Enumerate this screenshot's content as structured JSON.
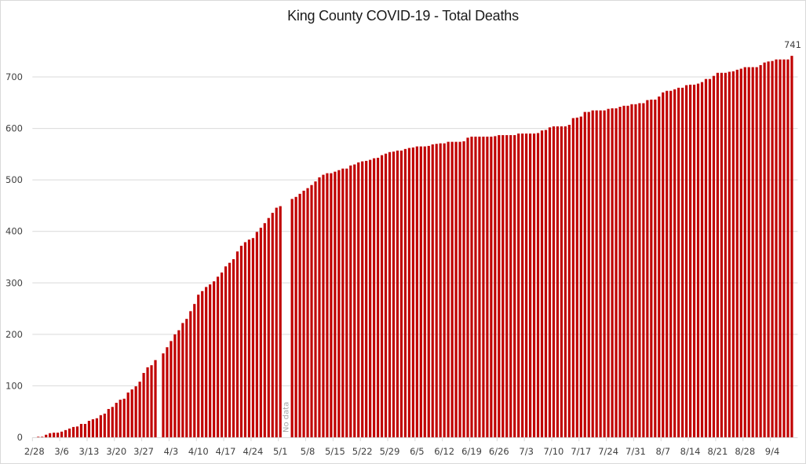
{
  "chart_data": {
    "type": "bar",
    "title": "King County COVID-19 - Total Deaths",
    "xlabel": "",
    "ylabel": "",
    "ylim": [
      0,
      700
    ],
    "yticks": [
      0,
      100,
      200,
      300,
      400,
      500,
      600,
      700
    ],
    "grid": true,
    "legend": "none",
    "bar_color": "#c00000",
    "x_tick_labels": [
      "2/28",
      "3/6",
      "3/13",
      "3/20",
      "3/27",
      "4/3",
      "4/10",
      "4/17",
      "4/24",
      "5/1",
      "5/8",
      "5/15",
      "5/22",
      "5/29",
      "6/5",
      "6/12",
      "6/19",
      "6/26",
      "7/3",
      "7/10",
      "7/17",
      "7/24",
      "7/31",
      "8/7",
      "8/14",
      "8/21",
      "8/28",
      "9/4"
    ],
    "annotations": [
      {
        "date": "5/2",
        "text": "No data"
      },
      {
        "date": "9/9",
        "text": "741"
      }
    ],
    "categories": [
      "2/28",
      "2/29",
      "3/1",
      "3/2",
      "3/3",
      "3/4",
      "3/5",
      "3/6",
      "3/7",
      "3/8",
      "3/9",
      "3/10",
      "3/11",
      "3/12",
      "3/13",
      "3/14",
      "3/15",
      "3/16",
      "3/17",
      "3/18",
      "3/19",
      "3/20",
      "3/21",
      "3/22",
      "3/23",
      "3/24",
      "3/25",
      "3/26",
      "3/27",
      "3/28",
      "3/29",
      "3/30",
      "3/31",
      "4/1",
      "4/2",
      "4/3",
      "4/4",
      "4/5",
      "4/6",
      "4/7",
      "4/8",
      "4/9",
      "4/10",
      "4/11",
      "4/12",
      "4/13",
      "4/14",
      "4/15",
      "4/16",
      "4/17",
      "4/18",
      "4/19",
      "4/20",
      "4/21",
      "4/22",
      "4/23",
      "4/24",
      "4/25",
      "4/26",
      "4/27",
      "4/28",
      "4/29",
      "4/30",
      "5/1",
      "5/2",
      "5/3",
      "5/4",
      "5/5",
      "5/6",
      "5/7",
      "5/8",
      "5/9",
      "5/10",
      "5/11",
      "5/12",
      "5/13",
      "5/14",
      "5/15",
      "5/16",
      "5/17",
      "5/18",
      "5/19",
      "5/20",
      "5/21",
      "5/22",
      "5/23",
      "5/24",
      "5/25",
      "5/26",
      "5/27",
      "5/28",
      "5/29",
      "5/30",
      "5/31",
      "6/1",
      "6/2",
      "6/3",
      "6/4",
      "6/5",
      "6/6",
      "6/7",
      "6/8",
      "6/9",
      "6/10",
      "6/11",
      "6/12",
      "6/13",
      "6/14",
      "6/15",
      "6/16",
      "6/17",
      "6/18",
      "6/19",
      "6/20",
      "6/21",
      "6/22",
      "6/23",
      "6/24",
      "6/25",
      "6/26",
      "6/27",
      "6/28",
      "6/29",
      "6/30",
      "7/1",
      "7/2",
      "7/3",
      "7/4",
      "7/5",
      "7/6",
      "7/7",
      "7/8",
      "7/9",
      "7/10",
      "7/11",
      "7/12",
      "7/13",
      "7/14",
      "7/15",
      "7/16",
      "7/17",
      "7/18",
      "7/19",
      "7/20",
      "7/21",
      "7/22",
      "7/23",
      "7/24",
      "7/25",
      "7/26",
      "7/27",
      "7/28",
      "7/29",
      "7/30",
      "7/31",
      "8/1",
      "8/2",
      "8/3",
      "8/4",
      "8/5",
      "8/6",
      "8/7",
      "8/8",
      "8/9",
      "8/10",
      "8/11",
      "8/12",
      "8/13",
      "8/14",
      "8/15",
      "8/16",
      "8/17",
      "8/18",
      "8/19",
      "8/20",
      "8/21",
      "8/22",
      "8/23",
      "8/24",
      "8/25",
      "8/26",
      "8/27",
      "8/28",
      "8/29",
      "8/30",
      "8/31",
      "9/1",
      "9/2",
      "9/3",
      "9/4",
      "9/5",
      "9/6",
      "9/7",
      "9/8",
      "9/9"
    ],
    "values": [
      0,
      1,
      1,
      5,
      8,
      9,
      9,
      11,
      14,
      17,
      20,
      21,
      26,
      26,
      32,
      35,
      37,
      43,
      46,
      55,
      59,
      67,
      73,
      75,
      87,
      93,
      99,
      108,
      125,
      136,
      140,
      150,
      null,
      163,
      175,
      187,
      200,
      208,
      222,
      230,
      245,
      259,
      277,
      284,
      292,
      297,
      303,
      312,
      320,
      332,
      339,
      346,
      361,
      372,
      379,
      384,
      387,
      399,
      407,
      416,
      426,
      436,
      446,
      449,
      null,
      null,
      463,
      467,
      473,
      479,
      484,
      490,
      497,
      505,
      510,
      513,
      513,
      516,
      519,
      522,
      522,
      528,
      530,
      534,
      536,
      537,
      539,
      542,
      543,
      548,
      551,
      554,
      555,
      557,
      557,
      560,
      562,
      563,
      565,
      565,
      565,
      566,
      569,
      570,
      571,
      571,
      574,
      574,
      574,
      574,
      575,
      582,
      584,
      584,
      584,
      584,
      584,
      584,
      585,
      587,
      587,
      587,
      587,
      587,
      590,
      590,
      590,
      590,
      590,
      591,
      596,
      597,
      602,
      604,
      604,
      604,
      604,
      607,
      620,
      621,
      623,
      632,
      632,
      635,
      635,
      635,
      635,
      638,
      639,
      639,
      642,
      644,
      644,
      647,
      647,
      649,
      649,
      655,
      656,
      656,
      662,
      670,
      673,
      673,
      676,
      679,
      679,
      684,
      685,
      685,
      687,
      690,
      696,
      696,
      702,
      708,
      708,
      708,
      710,
      711,
      714,
      716,
      719,
      719,
      719,
      719,
      723,
      728,
      730,
      731,
      734,
      734,
      734,
      734,
      741
    ]
  }
}
